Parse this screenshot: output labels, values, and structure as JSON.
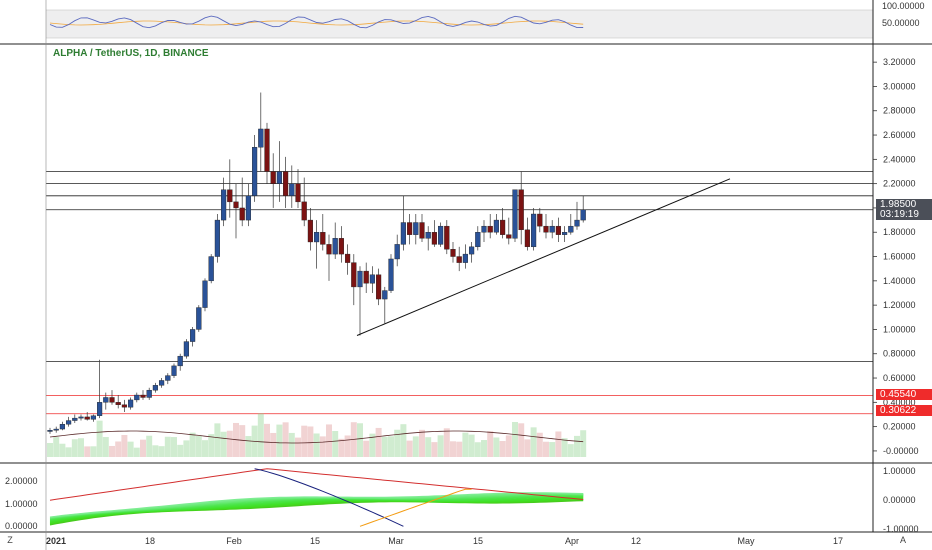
{
  "header": {
    "title": "ALPHA / TetherUS, 1D, BINANCE"
  },
  "price_labels": {
    "current_price": "1.98500",
    "countdown": "03:19:19",
    "level_1": "0.45540",
    "level_2": "0.30622"
  },
  "corner": {
    "left": "Z",
    "right": "A"
  },
  "axes": {
    "rsi_ticks": [
      "100.00000",
      "50.00000"
    ],
    "price_ticks": [
      "3.20000",
      "3.00000",
      "2.80000",
      "2.60000",
      "2.40000",
      "2.20000",
      "2.00000",
      "1.80000",
      "1.60000",
      "1.40000",
      "1.20000",
      "1.00000",
      "0.80000",
      "0.60000",
      "0.40000",
      "0.20000",
      "-0.00000"
    ],
    "osc_left_ticks": [
      "2.00000",
      "1.00000",
      "0.00000"
    ],
    "osc_right_ticks": [
      "1.00000",
      "0.00000",
      "-1.00000"
    ],
    "time_ticks": [
      "2021",
      "18",
      "Feb",
      "15",
      "Mar",
      "15",
      "Apr",
      "12",
      "May",
      "17"
    ]
  },
  "colors": {
    "bull": "#2a5298",
    "bear": "#7b1313",
    "title_green": "#2e7d32",
    "red_line": "#ef2b2b"
  },
  "chart_data": {
    "type": "candlestick",
    "title": "ALPHA / TetherUS, 1D, BINANCE",
    "y_range": [
      -0.05,
      3.3
    ],
    "current_price": 1.985,
    "horizontal_levels": [
      2.3,
      2.2,
      2.1,
      1.985,
      0.735
    ],
    "red_levels": [
      0.4554,
      0.30622
    ],
    "trendline": [
      {
        "x": "2021-02-24",
        "y": 0.95
      },
      {
        "x": "2021-04-26",
        "y": 2.24
      }
    ],
    "candles": [
      {
        "o": 0.16,
        "h": 0.19,
        "l": 0.14,
        "c": 0.17
      },
      {
        "o": 0.17,
        "h": 0.2,
        "l": 0.15,
        "c": 0.18
      },
      {
        "o": 0.18,
        "h": 0.24,
        "l": 0.17,
        "c": 0.22
      },
      {
        "o": 0.22,
        "h": 0.28,
        "l": 0.2,
        "c": 0.25
      },
      {
        "o": 0.25,
        "h": 0.3,
        "l": 0.23,
        "c": 0.27
      },
      {
        "o": 0.27,
        "h": 0.3,
        "l": 0.25,
        "c": 0.28
      },
      {
        "o": 0.28,
        "h": 0.32,
        "l": 0.25,
        "c": 0.26
      },
      {
        "o": 0.26,
        "h": 0.3,
        "l": 0.24,
        "c": 0.29
      },
      {
        "o": 0.29,
        "h": 0.75,
        "l": 0.27,
        "c": 0.4
      },
      {
        "o": 0.4,
        "h": 0.48,
        "l": 0.34,
        "c": 0.44
      },
      {
        "o": 0.44,
        "h": 0.5,
        "l": 0.38,
        "c": 0.4
      },
      {
        "o": 0.4,
        "h": 0.46,
        "l": 0.35,
        "c": 0.38
      },
      {
        "o": 0.38,
        "h": 0.42,
        "l": 0.32,
        "c": 0.36
      },
      {
        "o": 0.36,
        "h": 0.44,
        "l": 0.34,
        "c": 0.42
      },
      {
        "o": 0.42,
        "h": 0.48,
        "l": 0.4,
        "c": 0.46
      },
      {
        "o": 0.46,
        "h": 0.5,
        "l": 0.42,
        "c": 0.44
      },
      {
        "o": 0.44,
        "h": 0.52,
        "l": 0.42,
        "c": 0.5
      },
      {
        "o": 0.5,
        "h": 0.56,
        "l": 0.48,
        "c": 0.54
      },
      {
        "o": 0.54,
        "h": 0.6,
        "l": 0.52,
        "c": 0.58
      },
      {
        "o": 0.58,
        "h": 0.64,
        "l": 0.55,
        "c": 0.62
      },
      {
        "o": 0.62,
        "h": 0.72,
        "l": 0.6,
        "c": 0.7
      },
      {
        "o": 0.7,
        "h": 0.8,
        "l": 0.66,
        "c": 0.78
      },
      {
        "o": 0.78,
        "h": 0.92,
        "l": 0.76,
        "c": 0.9
      },
      {
        "o": 0.9,
        "h": 1.02,
        "l": 0.86,
        "c": 1.0
      },
      {
        "o": 1.0,
        "h": 1.2,
        "l": 0.98,
        "c": 1.18
      },
      {
        "o": 1.18,
        "h": 1.42,
        "l": 1.15,
        "c": 1.4
      },
      {
        "o": 1.4,
        "h": 1.62,
        "l": 1.38,
        "c": 1.6
      },
      {
        "o": 1.6,
        "h": 1.95,
        "l": 1.55,
        "c": 1.9
      },
      {
        "o": 1.9,
        "h": 2.25,
        "l": 1.85,
        "c": 2.15
      },
      {
        "o": 2.15,
        "h": 2.4,
        "l": 1.92,
        "c": 2.05
      },
      {
        "o": 2.05,
        "h": 2.2,
        "l": 1.75,
        "c": 2.0
      },
      {
        "o": 2.0,
        "h": 2.25,
        "l": 1.85,
        "c": 1.9
      },
      {
        "o": 1.9,
        "h": 2.2,
        "l": 1.85,
        "c": 2.1
      },
      {
        "o": 2.1,
        "h": 2.6,
        "l": 2.05,
        "c": 2.5
      },
      {
        "o": 2.5,
        "h": 2.95,
        "l": 2.3,
        "c": 2.65
      },
      {
        "o": 2.65,
        "h": 2.7,
        "l": 2.2,
        "c": 2.3
      },
      {
        "o": 2.3,
        "h": 2.45,
        "l": 2.0,
        "c": 2.2
      },
      {
        "o": 2.2,
        "h": 2.55,
        "l": 2.05,
        "c": 2.3
      },
      {
        "o": 2.3,
        "h": 2.42,
        "l": 2.0,
        "c": 2.1
      },
      {
        "o": 2.1,
        "h": 2.35,
        "l": 2.0,
        "c": 2.2
      },
      {
        "o": 2.2,
        "h": 2.32,
        "l": 2.0,
        "c": 2.05
      },
      {
        "o": 2.05,
        "h": 2.25,
        "l": 1.85,
        "c": 1.9
      },
      {
        "o": 1.9,
        "h": 2.0,
        "l": 1.65,
        "c": 1.72
      },
      {
        "o": 1.72,
        "h": 1.9,
        "l": 1.5,
        "c": 1.8
      },
      {
        "o": 1.8,
        "h": 1.95,
        "l": 1.65,
        "c": 1.7
      },
      {
        "o": 1.7,
        "h": 1.78,
        "l": 1.4,
        "c": 1.62
      },
      {
        "o": 1.62,
        "h": 1.88,
        "l": 1.58,
        "c": 1.75
      },
      {
        "o": 1.75,
        "h": 1.85,
        "l": 1.55,
        "c": 1.62
      },
      {
        "o": 1.62,
        "h": 1.7,
        "l": 1.45,
        "c": 1.55
      },
      {
        "o": 1.55,
        "h": 1.62,
        "l": 1.2,
        "c": 1.35
      },
      {
        "o": 1.35,
        "h": 1.52,
        "l": 0.95,
        "c": 1.48
      },
      {
        "o": 1.48,
        "h": 1.55,
        "l": 1.3,
        "c": 1.38
      },
      {
        "o": 1.38,
        "h": 1.52,
        "l": 1.3,
        "c": 1.45
      },
      {
        "o": 1.45,
        "h": 1.5,
        "l": 1.2,
        "c": 1.25
      },
      {
        "o": 1.25,
        "h": 1.35,
        "l": 1.05,
        "c": 1.32
      },
      {
        "o": 1.32,
        "h": 1.62,
        "l": 1.3,
        "c": 1.58
      },
      {
        "o": 1.58,
        "h": 1.78,
        "l": 1.52,
        "c": 1.7
      },
      {
        "o": 1.7,
        "h": 2.1,
        "l": 1.65,
        "c": 1.88
      },
      {
        "o": 1.88,
        "h": 1.95,
        "l": 1.7,
        "c": 1.78
      },
      {
        "o": 1.78,
        "h": 1.95,
        "l": 1.7,
        "c": 1.88
      },
      {
        "o": 1.88,
        "h": 1.95,
        "l": 1.72,
        "c": 1.75
      },
      {
        "o": 1.75,
        "h": 1.85,
        "l": 1.65,
        "c": 1.8
      },
      {
        "o": 1.8,
        "h": 1.9,
        "l": 1.68,
        "c": 1.7
      },
      {
        "o": 1.7,
        "h": 1.88,
        "l": 1.68,
        "c": 1.85
      },
      {
        "o": 1.85,
        "h": 1.9,
        "l": 1.62,
        "c": 1.66
      },
      {
        "o": 1.66,
        "h": 1.72,
        "l": 1.55,
        "c": 1.6
      },
      {
        "o": 1.6,
        "h": 1.68,
        "l": 1.48,
        "c": 1.55
      },
      {
        "o": 1.55,
        "h": 1.7,
        "l": 1.5,
        "c": 1.62
      },
      {
        "o": 1.62,
        "h": 1.72,
        "l": 1.55,
        "c": 1.68
      },
      {
        "o": 1.68,
        "h": 1.85,
        "l": 1.65,
        "c": 1.8
      },
      {
        "o": 1.8,
        "h": 1.9,
        "l": 1.72,
        "c": 1.85
      },
      {
        "o": 1.85,
        "h": 1.95,
        "l": 1.75,
        "c": 1.8
      },
      {
        "o": 1.8,
        "h": 1.95,
        "l": 1.78,
        "c": 1.9
      },
      {
        "o": 1.9,
        "h": 2.0,
        "l": 1.75,
        "c": 1.78
      },
      {
        "o": 1.78,
        "h": 1.92,
        "l": 1.7,
        "c": 1.75
      },
      {
        "o": 1.75,
        "h": 2.15,
        "l": 1.72,
        "c": 2.15
      },
      {
        "o": 2.15,
        "h": 2.3,
        "l": 1.7,
        "c": 1.82
      },
      {
        "o": 1.82,
        "h": 1.92,
        "l": 1.65,
        "c": 1.68
      },
      {
        "o": 1.68,
        "h": 2.0,
        "l": 1.65,
        "c": 1.95
      },
      {
        "o": 1.95,
        "h": 2.0,
        "l": 1.8,
        "c": 1.85
      },
      {
        "o": 1.85,
        "h": 1.95,
        "l": 1.75,
        "c": 1.8
      },
      {
        "o": 1.8,
        "h": 1.9,
        "l": 1.75,
        "c": 1.85
      },
      {
        "o": 1.85,
        "h": 1.92,
        "l": 1.72,
        "c": 1.78
      },
      {
        "o": 1.78,
        "h": 1.85,
        "l": 1.72,
        "c": 1.8
      },
      {
        "o": 1.8,
        "h": 1.95,
        "l": 1.78,
        "c": 1.85
      },
      {
        "o": 1.85,
        "h": 2.05,
        "l": 1.82,
        "c": 1.9
      },
      {
        "o": 1.9,
        "h": 2.1,
        "l": 1.88,
        "c": 1.985
      }
    ]
  }
}
